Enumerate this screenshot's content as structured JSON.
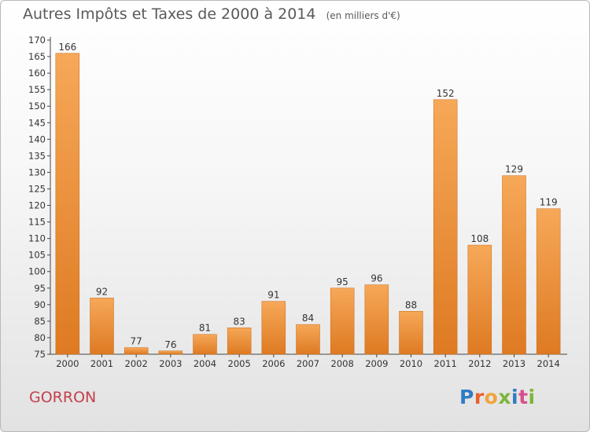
{
  "title": "Autres Impôts et Taxes de 2000 à 2014",
  "subtitle": "(en milliers d'€)",
  "commune": "GORRON",
  "brand": {
    "letters": [
      "P",
      "r",
      "o",
      "x",
      "i",
      "t",
      "i"
    ]
  },
  "colors": {
    "bar_light": "#f6a858",
    "bar_dark": "#de7a22",
    "title": "#5a5a5a",
    "commune": "#c2404e"
  },
  "chart_data": {
    "type": "bar",
    "categories": [
      "2000",
      "2001",
      "2002",
      "2003",
      "2004",
      "2005",
      "2006",
      "2007",
      "2008",
      "2009",
      "2010",
      "2011",
      "2012",
      "2013",
      "2014"
    ],
    "values": [
      166,
      92,
      77,
      76,
      81,
      83,
      91,
      84,
      95,
      96,
      88,
      152,
      108,
      129,
      119
    ],
    "ylim": [
      75,
      170
    ],
    "yticks": [
      75,
      80,
      85,
      90,
      95,
      100,
      105,
      110,
      115,
      120,
      125,
      130,
      135,
      140,
      145,
      150,
      155,
      160,
      165,
      170
    ],
    "grid": false,
    "legend": "none"
  }
}
